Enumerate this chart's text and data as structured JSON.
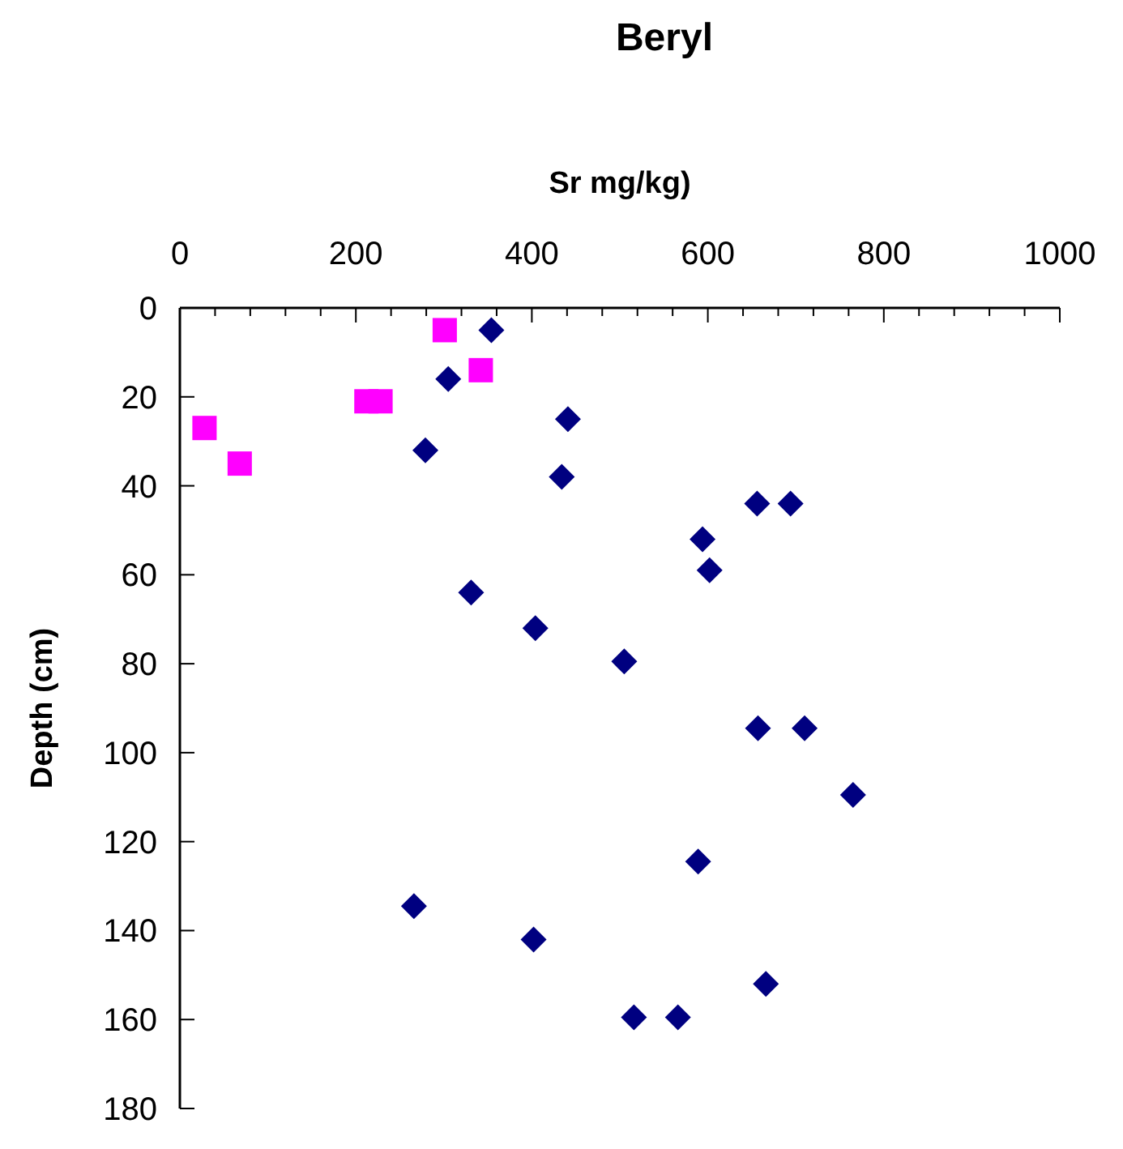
{
  "chart_data": {
    "type": "scatter",
    "title": "Beryl",
    "xlabel": "Sr mg/kg)",
    "ylabel": "Depth (cm)",
    "xlim": [
      0,
      1000
    ],
    "ylim": [
      180,
      0
    ],
    "xticks": [
      0,
      {
        "value": 40,
        "label": null
      },
      {
        "value": 80,
        "label": null
      },
      {
        "value": 120,
        "label": null
      },
      {
        "value": 160,
        "label": null
      },
      200,
      {
        "value": 240,
        "label": null
      },
      {
        "value": 280,
        "label": null
      },
      {
        "value": 320,
        "label": null
      },
      {
        "value": 360,
        "label": null
      },
      400,
      {
        "value": 440,
        "label": null
      },
      {
        "value": 480,
        "label": null
      },
      {
        "value": 520,
        "label": null
      },
      {
        "value": 560,
        "label": null
      },
      600,
      {
        "value": 640,
        "label": null
      },
      {
        "value": 680,
        "label": null
      },
      {
        "value": 720,
        "label": null
      },
      {
        "value": 760,
        "label": null
      },
      800,
      {
        "value": 840,
        "label": null
      },
      {
        "value": 880,
        "label": null
      },
      {
        "value": 920,
        "label": null
      },
      {
        "value": 960,
        "label": null
      },
      1000
    ],
    "yticks": [
      0,
      20,
      40,
      60,
      80,
      100,
      120,
      140,
      160,
      180
    ],
    "grid": false,
    "series": [
      {
        "color": "#000080",
        "marker": "diamond",
        "x": [
          354,
          305,
          441,
          279,
          434,
          656,
          694,
          594,
          602,
          331,
          404,
          505,
          657,
          710,
          765,
          589,
          266,
          402,
          666,
          516,
          566
        ],
        "values": [
          5,
          16,
          25,
          32,
          38,
          44,
          44,
          52,
          59,
          64,
          72,
          79.5,
          94.5,
          94.5,
          109.5,
          124.5,
          134.5,
          142,
          152,
          159.5,
          159.5
        ]
      },
      {
        "color": "#ff00ff",
        "marker": "square",
        "x": [
          301,
          342,
          212,
          228,
          28,
          68
        ],
        "values": [
          5,
          14,
          21,
          21,
          27,
          35
        ]
      }
    ]
  }
}
